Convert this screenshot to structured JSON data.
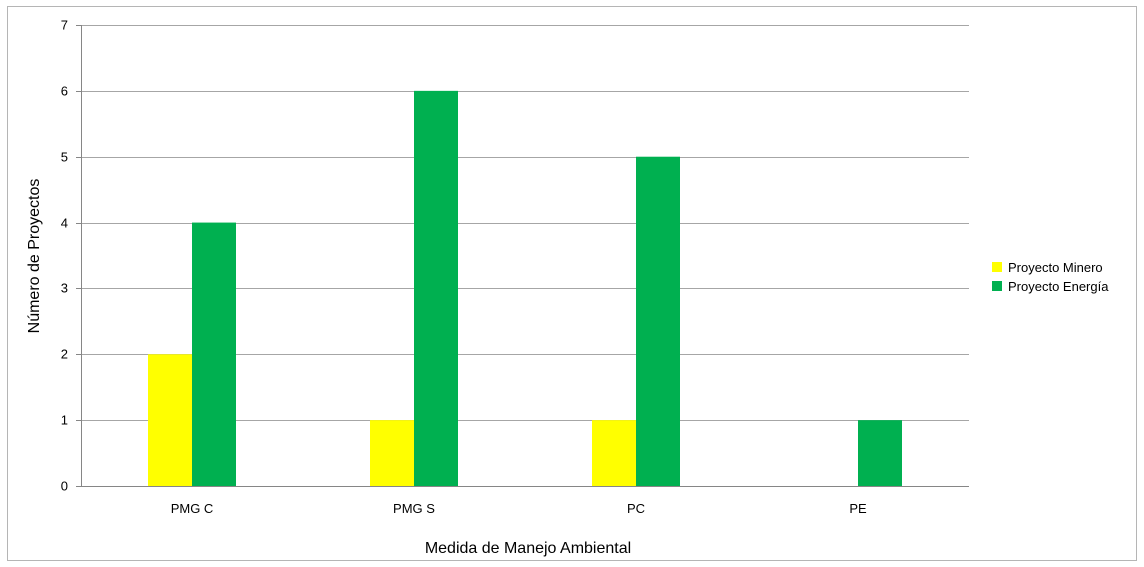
{
  "chart_data": {
    "type": "bar",
    "title": "",
    "xlabel": "Medida de Manejo Ambiental",
    "ylabel": "Número de Proyectos",
    "categories": [
      "PMG C",
      "PMG S",
      "PC",
      "PE"
    ],
    "series": [
      {
        "name": "Proyecto Minero",
        "values": [
          2,
          1,
          1,
          0
        ],
        "color": "#ffff00"
      },
      {
        "name": "Proyecto Energía",
        "values": [
          4,
          6,
          5,
          1
        ],
        "color": "#00b050"
      }
    ],
    "ylim": [
      0,
      7
    ],
    "yticks": [
      0,
      1,
      2,
      3,
      4,
      5,
      6,
      7
    ],
    "grid": true,
    "legend_position": "right"
  }
}
